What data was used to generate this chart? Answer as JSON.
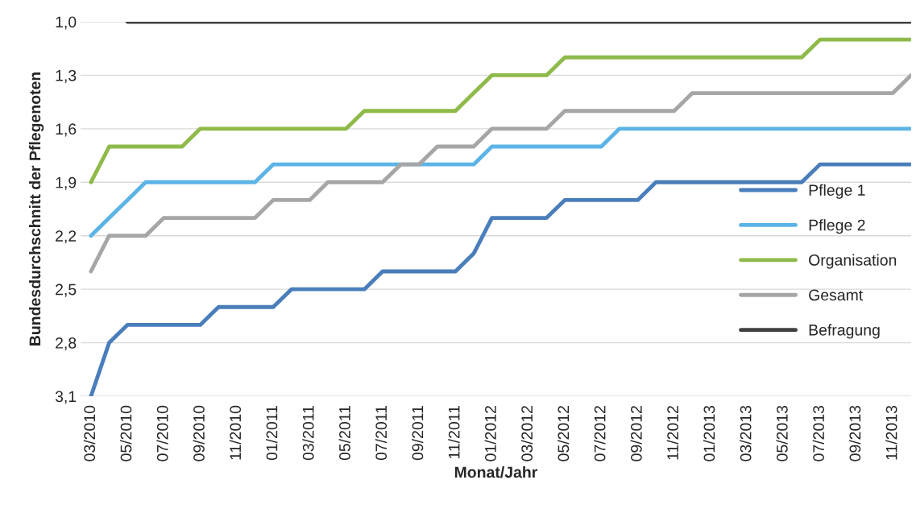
{
  "chart_data": {
    "type": "line",
    "xlabel": "Monat/Jahr",
    "ylabel": "Bundesdurchschnitt der Pflegenoten",
    "categories": [
      "03/2010",
      null,
      "05/2010",
      null,
      "07/2010",
      null,
      "09/2010",
      null,
      "11/2010",
      null,
      "01/2011",
      null,
      "03/2011",
      null,
      "05/2011",
      null,
      "07/2011",
      null,
      "09/2011",
      null,
      "11/2011",
      null,
      "01/2012",
      null,
      "03/2012",
      null,
      "05/2012",
      null,
      "07/2012",
      null,
      "09/2012",
      null,
      "11/2012",
      null,
      "01/2013",
      null,
      "03/2013",
      null,
      "05/2013",
      null,
      "07/2013",
      null,
      "09/2013",
      null,
      "11/2013",
      null
    ],
    "series": [
      {
        "name": "Pflege 1",
        "color": "#4a7ebb",
        "values": [
          3.1,
          2.8,
          2.7,
          2.7,
          2.7,
          2.7,
          2.7,
          2.6,
          2.6,
          2.6,
          2.6,
          2.5,
          2.5,
          2.5,
          2.5,
          2.5,
          2.4,
          2.4,
          2.4,
          2.4,
          2.4,
          2.3,
          2.1,
          2.1,
          2.1,
          2.1,
          2.0,
          2.0,
          2.0,
          2.0,
          2.0,
          1.9,
          1.9,
          1.9,
          1.9,
          1.9,
          1.9,
          1.9,
          1.9,
          1.9,
          1.8,
          1.8,
          1.8,
          1.8,
          1.8,
          1.8
        ]
      },
      {
        "name": "Pflege 2",
        "color": "#5cb4e6",
        "values": [
          2.2,
          2.1,
          2.0,
          1.9,
          1.9,
          1.9,
          1.9,
          1.9,
          1.9,
          1.9,
          1.8,
          1.8,
          1.8,
          1.8,
          1.8,
          1.8,
          1.8,
          1.8,
          1.8,
          1.8,
          1.8,
          1.8,
          1.7,
          1.7,
          1.7,
          1.7,
          1.7,
          1.7,
          1.7,
          1.6,
          1.6,
          1.6,
          1.6,
          1.6,
          1.6,
          1.6,
          1.6,
          1.6,
          1.6,
          1.6,
          1.6,
          1.6,
          1.6,
          1.6,
          1.6,
          1.6
        ]
      },
      {
        "name": "Organisation",
        "color": "#8fba4a",
        "values": [
          1.9,
          1.7,
          1.7,
          1.7,
          1.7,
          1.7,
          1.6,
          1.6,
          1.6,
          1.6,
          1.6,
          1.6,
          1.6,
          1.6,
          1.6,
          1.5,
          1.5,
          1.5,
          1.5,
          1.5,
          1.5,
          1.4,
          1.3,
          1.3,
          1.3,
          1.3,
          1.2,
          1.2,
          1.2,
          1.2,
          1.2,
          1.2,
          1.2,
          1.2,
          1.2,
          1.2,
          1.2,
          1.2,
          1.2,
          1.2,
          1.1,
          1.1,
          1.1,
          1.1,
          1.1,
          1.1
        ]
      },
      {
        "name": "Gesamt",
        "color": "#a6a6a6",
        "values": [
          2.4,
          2.2,
          2.2,
          2.2,
          2.1,
          2.1,
          2.1,
          2.1,
          2.1,
          2.1,
          2.0,
          2.0,
          2.0,
          1.9,
          1.9,
          1.9,
          1.9,
          1.8,
          1.8,
          1.7,
          1.7,
          1.7,
          1.6,
          1.6,
          1.6,
          1.6,
          1.5,
          1.5,
          1.5,
          1.5,
          1.5,
          1.5,
          1.5,
          1.4,
          1.4,
          1.4,
          1.4,
          1.4,
          1.4,
          1.4,
          1.4,
          1.4,
          1.4,
          1.4,
          1.4,
          1.3
        ]
      },
      {
        "name": "Befragung",
        "color": "#404040",
        "values": [
          null,
          null,
          1.0,
          1.0,
          1.0,
          1.0,
          1.0,
          1.0,
          1.0,
          1.0,
          1.0,
          1.0,
          1.0,
          1.0,
          1.0,
          1.0,
          1.0,
          1.0,
          1.0,
          1.0,
          1.0,
          1.0,
          1.0,
          1.0,
          1.0,
          1.0,
          1.0,
          1.0,
          1.0,
          1.0,
          1.0,
          1.0,
          1.0,
          1.0,
          1.0,
          1.0,
          1.0,
          1.0,
          1.0,
          1.0,
          1.0,
          1.0,
          1.0,
          1.0,
          1.0,
          1.0
        ]
      }
    ],
    "ylim": [
      3.1,
      1.0
    ],
    "yticks": [
      {
        "value": 1.0,
        "label": "1,0"
      },
      {
        "value": 1.3,
        "label": "1,3"
      },
      {
        "value": 1.6,
        "label": "1,6"
      },
      {
        "value": 1.9,
        "label": "1,9"
      },
      {
        "value": 2.2,
        "label": "2,2"
      },
      {
        "value": 2.5,
        "label": "2,5"
      },
      {
        "value": 2.8,
        "label": "2,8"
      },
      {
        "value": 3.1,
        "label": "3,1"
      }
    ],
    "grid": "y",
    "legend": "right",
    "marker": "none",
    "line_style": "solid"
  }
}
